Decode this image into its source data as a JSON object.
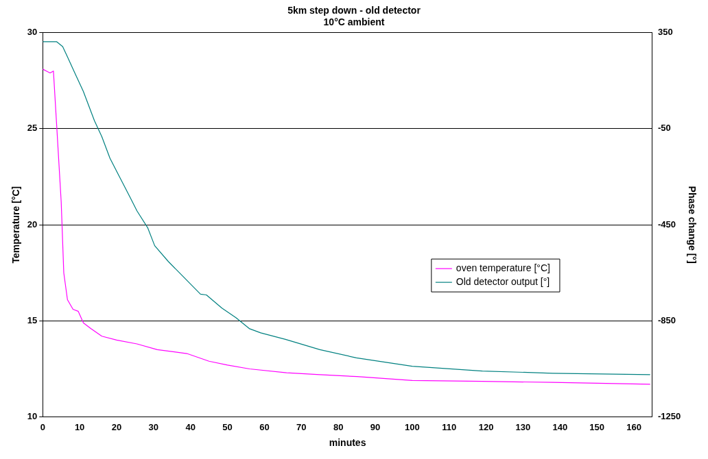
{
  "chart_data": {
    "type": "line",
    "title": "5km step down - old detector",
    "subtitle": "10°C ambient",
    "xlabel": "minutes",
    "ylabel": "Temperature [°C]",
    "y2label": "Phase change [°]",
    "xlim": [
      0,
      165
    ],
    "xticks": [
      0,
      10,
      20,
      30,
      40,
      50,
      60,
      70,
      80,
      90,
      100,
      110,
      120,
      130,
      140,
      150,
      160
    ],
    "ylim": [
      10,
      30
    ],
    "yticks": [
      10,
      15,
      20,
      25,
      30
    ],
    "y2lim": [
      -1250,
      350
    ],
    "y2ticks": [
      -1250,
      -850,
      -450,
      -50,
      350
    ],
    "grid": "y",
    "legend": "right",
    "marker": "none",
    "line_style": "solid",
    "series": [
      {
        "name": "oven temperature [°C]",
        "color": "#ff00ff",
        "x": [
          0,
          1,
          2,
          2.9,
          3.8,
          5,
          5.7,
          6.7,
          8.2,
          9.6,
          11,
          13,
          16,
          20,
          25.5,
          31,
          39,
          45,
          50,
          56,
          66,
          75,
          85,
          100,
          119,
          138,
          164.4
        ],
        "values": [
          28.1,
          28,
          27.9,
          28,
          25.1,
          21.2,
          17.5,
          16.1,
          15.6,
          15.5,
          14.9,
          14.6,
          14.2,
          14,
          13.8,
          13.5,
          13.3,
          12.9,
          12.7,
          12.5,
          12.3,
          12.2,
          12.1,
          11.9,
          11.85,
          11.8,
          11.7
        ]
      },
      {
        "name": "Old detector output [°]",
        "color": "#008080",
        "axis": "y2",
        "x": [
          0,
          3.8,
          5.4,
          6.7,
          8.6,
          11,
          14,
          16,
          18.2,
          20.7,
          23.6,
          25.5,
          28.4,
          30.3,
          34,
          39,
          42.7,
          44.3,
          48.5,
          52.3,
          56,
          59,
          65.7,
          75,
          84.9,
          100,
          119,
          138,
          164.4
        ],
        "values": [
          312,
          312,
          292,
          249,
          185,
          105,
          -17,
          -83,
          -173,
          -248,
          -334,
          -392,
          -462,
          -537,
          -603,
          -681,
          -739,
          -742,
          -797,
          -837,
          -883,
          -900,
          -927,
          -970,
          -1004,
          -1039,
          -1059,
          -1068,
          -1074
        ]
      }
    ]
  }
}
